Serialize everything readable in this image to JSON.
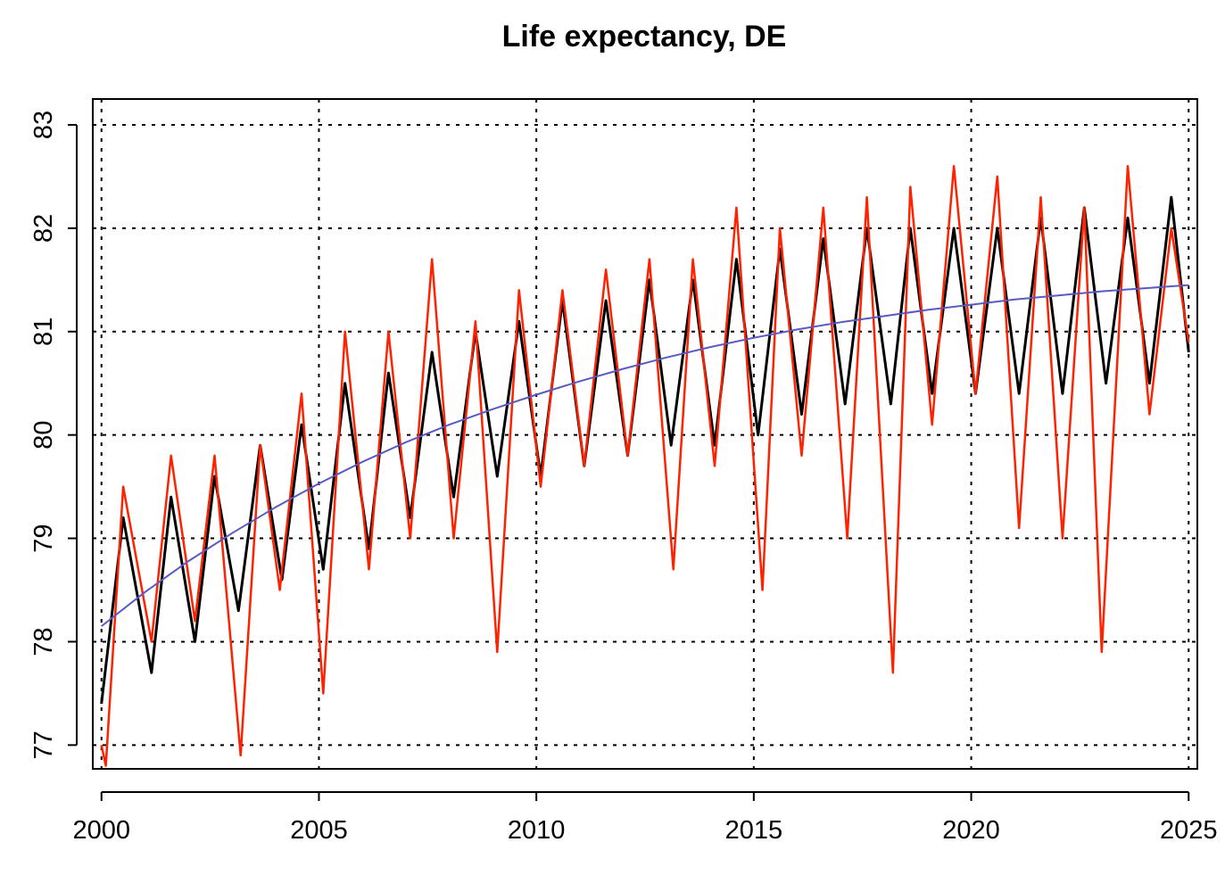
{
  "chart_data": {
    "type": "line",
    "title": "Life expectancy, DE",
    "xlabel": "",
    "ylabel": "",
    "xlim": [
      1999.8,
      2025.2
    ],
    "ylim": [
      76.77,
      83.25
    ],
    "x_ticks": [
      2000,
      2005,
      2010,
      2015,
      2020,
      2025
    ],
    "x_tick_labels": [
      "2000",
      "2005",
      "2010",
      "2015",
      "2020",
      "2025"
    ],
    "y_ticks": [
      77,
      78,
      79,
      80,
      81,
      82,
      83
    ],
    "y_tick_labels": [
      "77",
      "78",
      "79",
      "80",
      "81",
      "82",
      "83"
    ],
    "grid": true,
    "legend": "none",
    "colors": {
      "smoothed": "#000000",
      "weekly": "#ff2200",
      "trend": "#5a5ac0"
    },
    "series": [
      {
        "color_key": "smoothed",
        "x": [
          2000.0,
          2000.5,
          2001.15,
          2001.6,
          2002.15,
          2002.6,
          2003.15,
          2003.65,
          2004.15,
          2004.6,
          2005.1,
          2005.6,
          2006.15,
          2006.6,
          2007.1,
          2007.6,
          2008.1,
          2008.6,
          2009.1,
          2009.6,
          2010.1,
          2010.6,
          2011.1,
          2011.6,
          2012.1,
          2012.6,
          2013.1,
          2013.6,
          2014.1,
          2014.6,
          2015.1,
          2015.6,
          2016.1,
          2016.6,
          2017.1,
          2017.6,
          2018.15,
          2018.6,
          2019.1,
          2019.6,
          2020.1,
          2020.6,
          2021.1,
          2021.6,
          2022.1,
          2022.6,
          2023.1,
          2023.6,
          2024.1,
          2024.6,
          2025.0
        ],
        "values": [
          77.4,
          79.2,
          77.7,
          79.4,
          78.0,
          79.6,
          78.3,
          79.9,
          78.6,
          80.1,
          78.7,
          80.5,
          78.9,
          80.6,
          79.2,
          80.8,
          79.4,
          81.0,
          79.6,
          81.1,
          79.6,
          81.3,
          79.7,
          81.3,
          79.8,
          81.5,
          79.9,
          81.5,
          79.9,
          81.7,
          80.0,
          81.8,
          80.2,
          81.9,
          80.3,
          82.0,
          80.3,
          82.0,
          80.4,
          82.0,
          80.4,
          82.0,
          80.4,
          82.1,
          80.4,
          82.2,
          80.5,
          82.1,
          80.5,
          82.3,
          80.8
        ]
      },
      {
        "color_key": "weekly",
        "x": [
          2000.0,
          2000.1,
          2000.5,
          2001.15,
          2001.6,
          2002.15,
          2002.6,
          2003.2,
          2003.65,
          2004.1,
          2004.6,
          2005.1,
          2005.6,
          2006.15,
          2006.6,
          2007.1,
          2007.6,
          2008.1,
          2008.6,
          2009.1,
          2009.6,
          2010.1,
          2010.6,
          2011.1,
          2011.6,
          2012.1,
          2012.6,
          2013.15,
          2013.6,
          2014.1,
          2014.6,
          2015.2,
          2015.6,
          2016.1,
          2016.6,
          2017.15,
          2017.6,
          2018.2,
          2018.6,
          2019.1,
          2019.6,
          2020.1,
          2020.6,
          2021.1,
          2021.6,
          2022.1,
          2022.6,
          2023.0,
          2023.6,
          2024.1,
          2024.6,
          2025.0
        ],
        "values": [
          77.0,
          76.8,
          79.5,
          78.0,
          79.8,
          78.2,
          79.8,
          76.9,
          79.9,
          78.5,
          80.4,
          77.5,
          81.0,
          78.7,
          81.0,
          79.0,
          81.7,
          79.0,
          81.1,
          77.9,
          81.4,
          79.5,
          81.4,
          79.7,
          81.6,
          79.8,
          81.7,
          78.7,
          81.7,
          79.7,
          82.2,
          78.5,
          82.0,
          79.8,
          82.2,
          79.0,
          82.3,
          77.7,
          82.4,
          80.1,
          82.6,
          80.4,
          82.5,
          79.1,
          82.3,
          79.0,
          82.2,
          77.9,
          82.6,
          80.2,
          82.0,
          80.9
        ]
      },
      {
        "color_key": "trend",
        "x": [
          2000,
          2001,
          2002,
          2003,
          2004,
          2005,
          2006,
          2007,
          2008,
          2009,
          2010,
          2011,
          2012,
          2013,
          2014,
          2015,
          2016,
          2017,
          2018,
          2019,
          2020,
          2021,
          2022,
          2023,
          2024,
          2025
        ],
        "values": [
          78.15,
          78.48,
          78.78,
          79.05,
          79.3,
          79.53,
          79.74,
          79.93,
          80.1,
          80.25,
          80.39,
          80.52,
          80.64,
          80.75,
          80.85,
          80.94,
          81.02,
          81.09,
          81.15,
          81.21,
          81.26,
          81.31,
          81.35,
          81.39,
          81.42,
          81.45
        ]
      }
    ]
  }
}
